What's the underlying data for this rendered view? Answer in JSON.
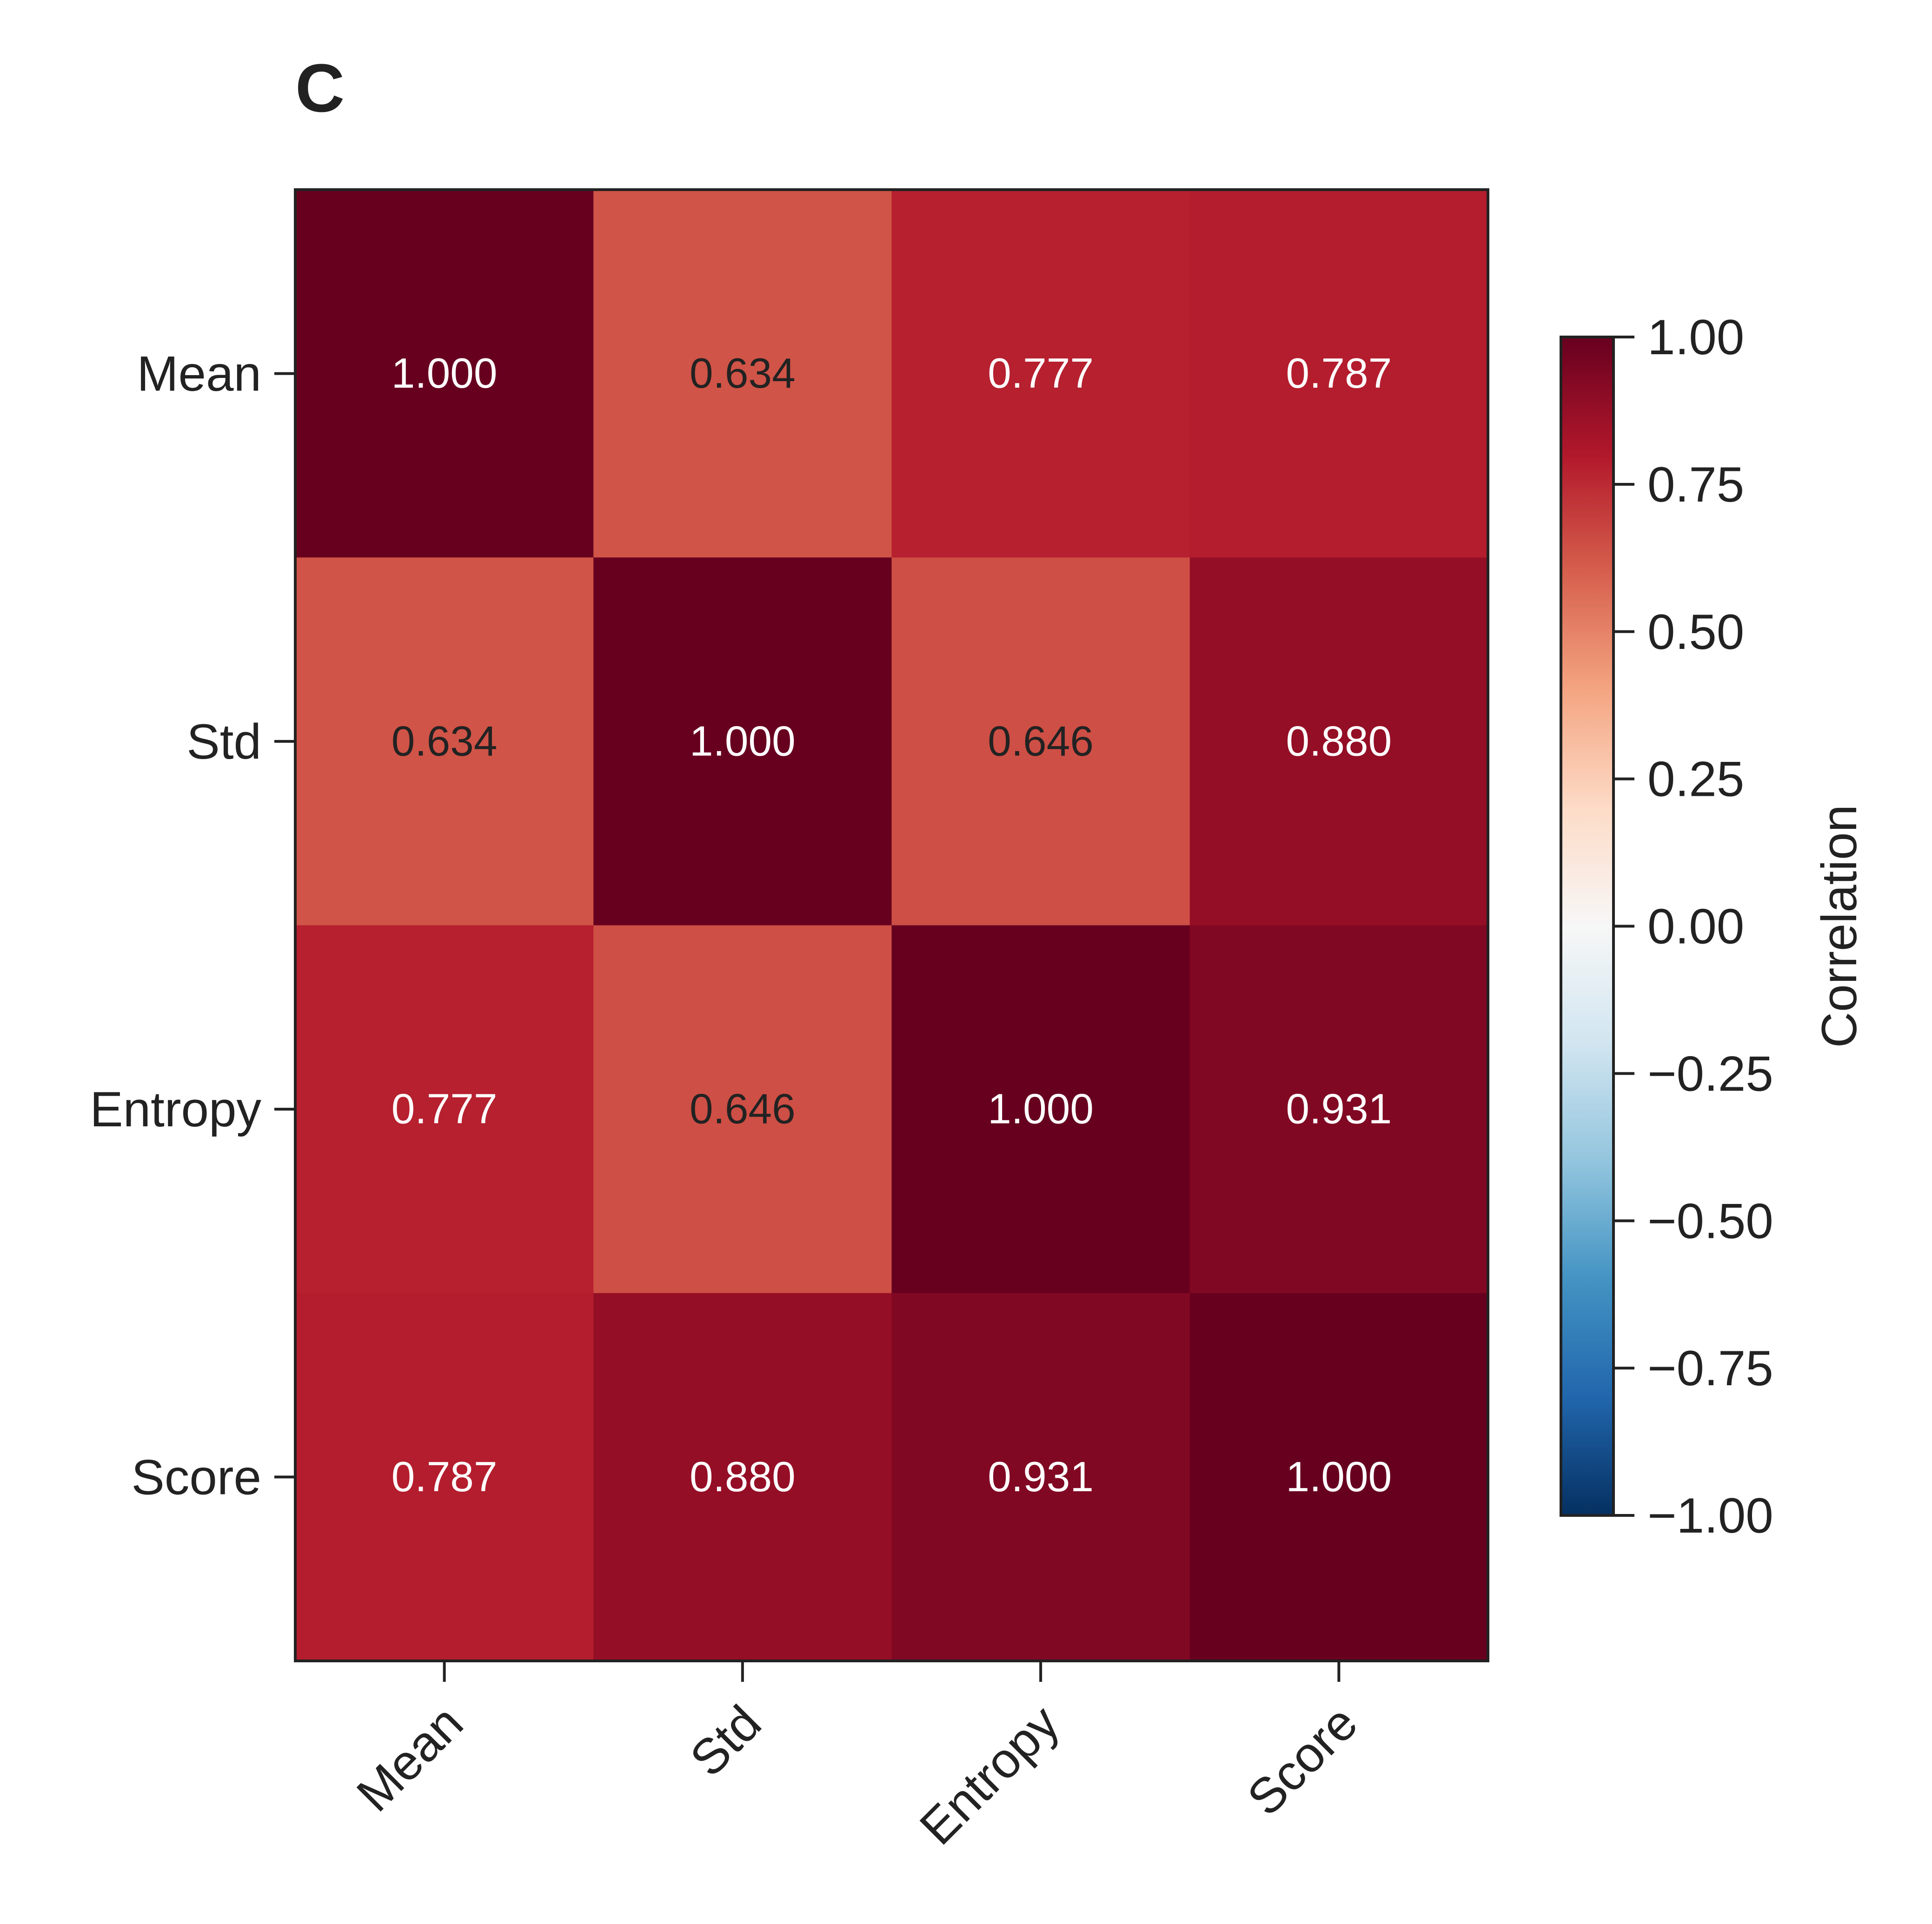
{
  "chart_data": {
    "type": "heatmap",
    "panel_label": "C",
    "x_categories": [
      "Mean",
      "Std",
      "Entropy",
      "Score"
    ],
    "y_categories": [
      "Mean",
      "Std",
      "Entropy",
      "Score"
    ],
    "values": [
      [
        1.0,
        0.634,
        0.777,
        0.787
      ],
      [
        0.634,
        1.0,
        0.646,
        0.88
      ],
      [
        0.777,
        0.646,
        1.0,
        0.931
      ],
      [
        0.787,
        0.88,
        0.931,
        1.0
      ]
    ],
    "value_labels": [
      [
        "1.000",
        "0.634",
        "0.777",
        "0.787"
      ],
      [
        "0.634",
        "1.000",
        "0.646",
        "0.880"
      ],
      [
        "0.777",
        "0.646",
        "1.000",
        "0.931"
      ],
      [
        "0.787",
        "0.880",
        "0.931",
        "1.000"
      ]
    ],
    "colorbar": {
      "label": "Correlation",
      "range": [
        -1.0,
        1.0
      ],
      "ticks": [
        1.0,
        0.75,
        0.5,
        0.25,
        0.0,
        -0.25,
        -0.5,
        -0.75,
        -1.0
      ],
      "tick_labels": [
        "1.00",
        "0.75",
        "0.50",
        "0.25",
        "0.00",
        "−0.25",
        "−0.50",
        "−0.75",
        "−1.00"
      ],
      "colormap": "RdBu_r",
      "colormap_stops": [
        "#053061",
        "#2166ac",
        "#4393c3",
        "#92c5de",
        "#d1e5f0",
        "#f7f7f7",
        "#fddbc7",
        "#f4a582",
        "#d6604d",
        "#b2182b",
        "#67001f"
      ]
    },
    "text_colors": {
      "light": "#ffffff",
      "dark": "#222222"
    },
    "frame_color": "#222222"
  }
}
